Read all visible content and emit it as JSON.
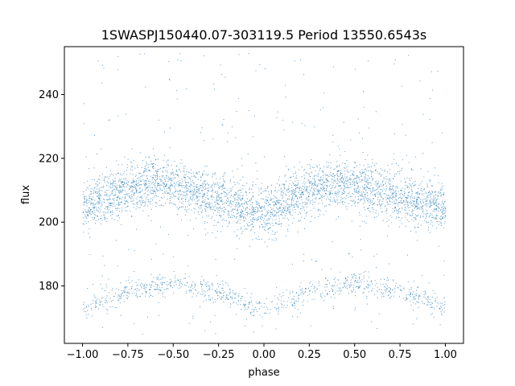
{
  "chart_data": {
    "type": "scatter",
    "title": "1SWASPJ150440.07-303119.5 Period 13550.6543s",
    "xlabel": "phase",
    "ylabel": "flux",
    "xlim": [
      -1.1,
      1.1
    ],
    "ylim": [
      162,
      255
    ],
    "xticks": [
      -1.0,
      -0.75,
      -0.5,
      -0.25,
      0.0,
      0.25,
      0.5,
      0.75,
      1.0
    ],
    "xtick_labels": [
      "−1.00",
      "−0.75",
      "−0.50",
      "−0.25",
      "0.00",
      "0.25",
      "0.50",
      "0.75",
      "1.00"
    ],
    "yticks": [
      180,
      200,
      220,
      240
    ],
    "ytick_labels": [
      "180",
      "200",
      "220",
      "240"
    ],
    "grid": false,
    "legend": "none",
    "marker_color": "#1f77b4",
    "series": [
      {
        "name": "",
        "description_points": "dense folded light curve, two periods shown",
        "main_band": {
          "phase": [
            -1.0,
            -0.75,
            -0.6,
            -0.5,
            -0.25,
            0.0,
            0.25,
            0.4,
            0.5,
            0.75,
            1.0
          ],
          "flux": [
            205,
            211,
            213,
            212,
            207,
            203,
            210,
            213,
            212,
            207,
            205
          ]
        },
        "main_band_spread": 4,
        "faint_band": {
          "phase": [
            -1.0,
            -0.75,
            -0.5,
            -0.25,
            0.0,
            0.25,
            0.5,
            0.75,
            1.0
          ],
          "flux": [
            173.5,
            178.5,
            181,
            178.5,
            172,
            178.5,
            181,
            178.5,
            173.5
          ]
        },
        "faint_band_spread": 1.8,
        "outlier_range": [
          165,
          253
        ]
      }
    ]
  }
}
